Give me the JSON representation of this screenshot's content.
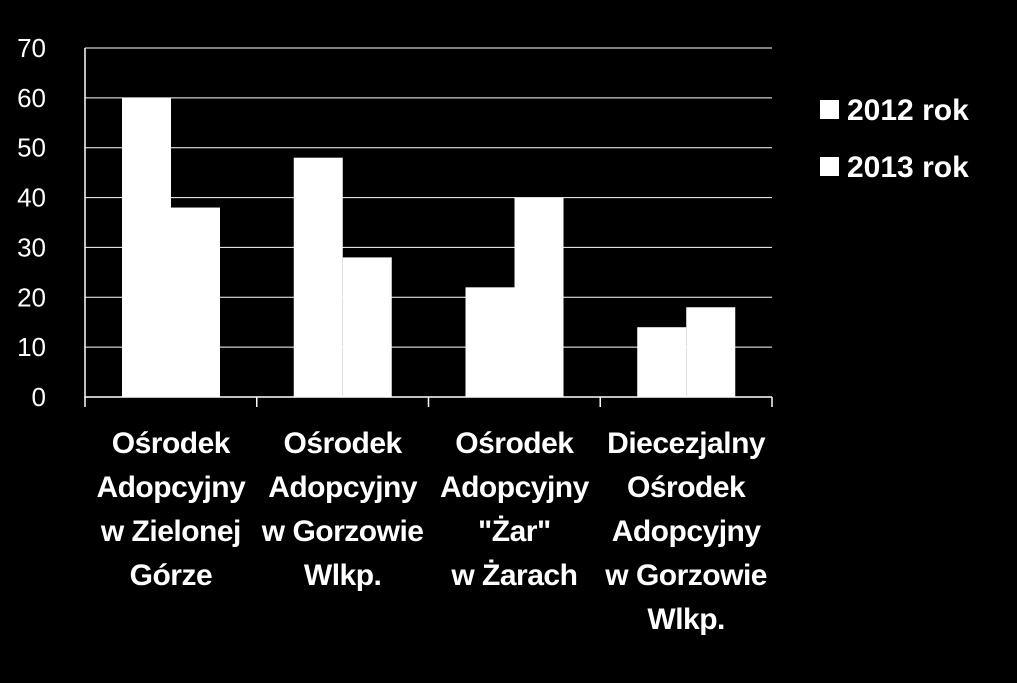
{
  "chart_data": {
    "type": "bar",
    "categories": [
      [
        "Ośrodek",
        "Adopcyjny",
        "w Zielonej",
        "Górze"
      ],
      [
        "Ośrodek",
        "Adopcyjny",
        "w Gorzowie",
        "Wlkp."
      ],
      [
        "Ośrodek",
        "Adopcyjny",
        "\"Żar\"",
        "w Żarach"
      ],
      [
        "Diecezjalny",
        "Ośrodek",
        "Adopcyjny",
        "w Gorzowie",
        "Wlkp."
      ]
    ],
    "series": [
      {
        "name": "2012 rok",
        "values": [
          60,
          48,
          22,
          14
        ],
        "color": "#ffffff"
      },
      {
        "name": "2013 rok",
        "values": [
          38,
          28,
          40,
          18
        ],
        "color": "#ffffff"
      }
    ],
    "ylim": [
      0,
      70
    ],
    "yticks": [
      "0",
      "10",
      "20",
      "30",
      "40",
      "50",
      "60",
      "70"
    ],
    "grid": true,
    "legend_position": "right",
    "background": "#000000",
    "grid_color": "#ffffff"
  }
}
